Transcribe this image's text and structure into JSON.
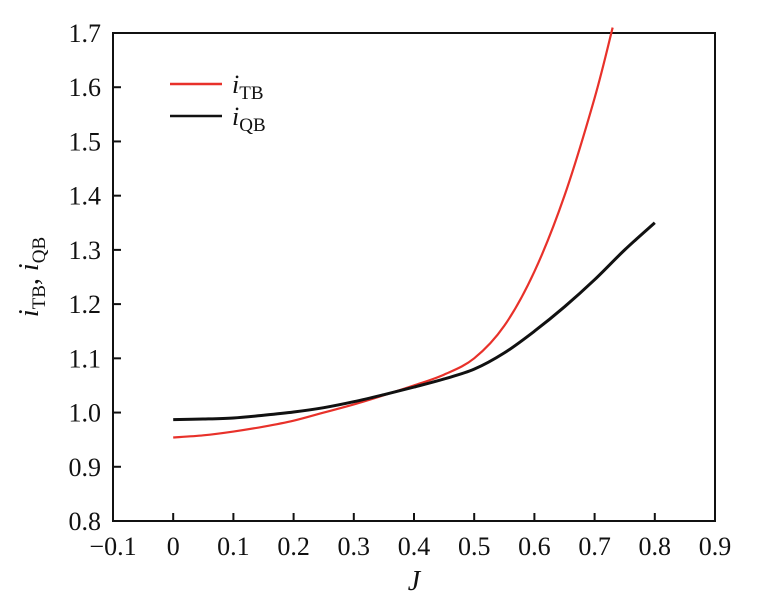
{
  "chart_data": {
    "type": "line",
    "xlabel": "J",
    "ylabel": {
      "main1": "i",
      "sub1": "TB",
      "sep": ", ",
      "main2": "i",
      "sub2": "QB"
    },
    "xlim": [
      -0.1,
      0.9
    ],
    "ylim": [
      0.8,
      1.7
    ],
    "xticks": [
      -0.1,
      0,
      0.1,
      0.2,
      0.3,
      0.4,
      0.5,
      0.6,
      0.7,
      0.8,
      0.9
    ],
    "xtick_labels": [
      "−0.1",
      "0",
      "0.1",
      "0.2",
      "0.3",
      "0.4",
      "0.5",
      "0.6",
      "0.7",
      "0.8",
      "0.9"
    ],
    "yticks": [
      0.8,
      0.9,
      1.0,
      1.1,
      1.2,
      1.3,
      1.4,
      1.5,
      1.6,
      1.7
    ],
    "ytick_labels": [
      "0.8",
      "0.9",
      "1.0",
      "1.1",
      "1.2",
      "1.3",
      "1.4",
      "1.5",
      "1.6",
      "1.7"
    ],
    "grid": false,
    "legend_position": "top-left",
    "series": [
      {
        "name": "i_TB",
        "label_main": "i",
        "label_sub": "TB",
        "color": "#e8312a",
        "x": [
          0,
          0.05,
          0.1,
          0.15,
          0.2,
          0.25,
          0.3,
          0.35,
          0.4,
          0.45,
          0.5,
          0.55,
          0.6,
          0.65,
          0.7,
          0.73
        ],
        "y": [
          0.954,
          0.958,
          0.965,
          0.974,
          0.985,
          1.0,
          1.015,
          1.032,
          1.05,
          1.07,
          1.1,
          1.16,
          1.26,
          1.4,
          1.58,
          1.71
        ]
      },
      {
        "name": "i_QB",
        "label_main": "i",
        "label_sub": "QB",
        "color": "#111111",
        "x": [
          0,
          0.05,
          0.1,
          0.15,
          0.2,
          0.25,
          0.3,
          0.35,
          0.4,
          0.45,
          0.5,
          0.55,
          0.6,
          0.65,
          0.7,
          0.75,
          0.8
        ],
        "y": [
          0.987,
          0.988,
          0.99,
          0.995,
          1.001,
          1.009,
          1.02,
          1.033,
          1.047,
          1.062,
          1.08,
          1.11,
          1.15,
          1.195,
          1.245,
          1.3,
          1.35
        ]
      }
    ]
  }
}
